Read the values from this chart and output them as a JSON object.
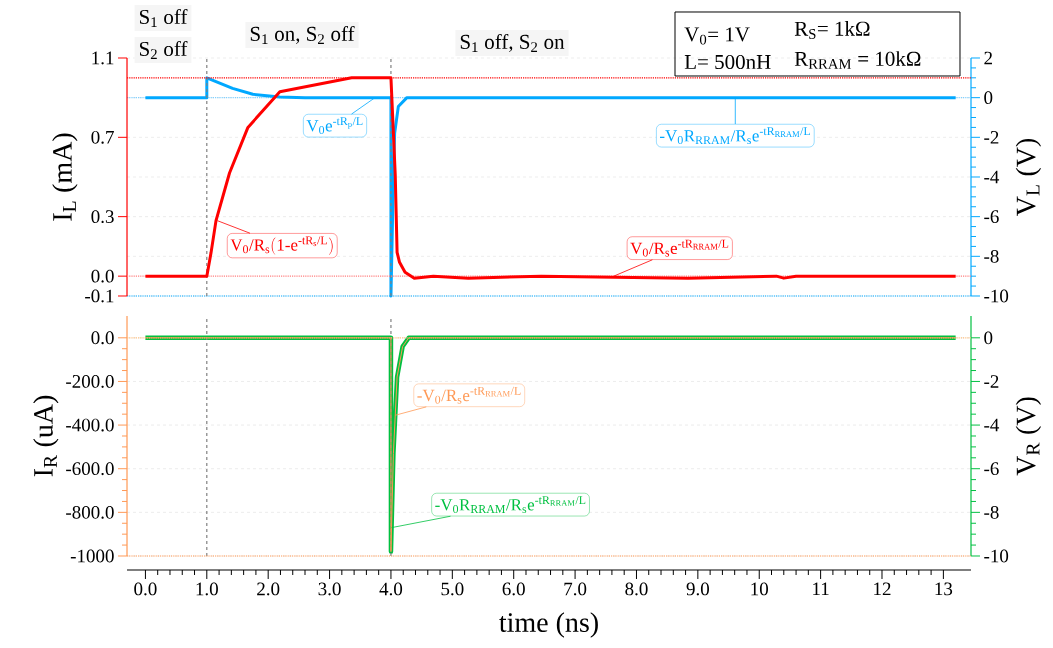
{
  "chart_data": [
    {
      "type": "line",
      "ylabel": "I$_{L}$ (mA)",
      "y2label": "V$_{L}$ (V)",
      "xlim": [
        -0.3,
        13.45
      ],
      "xticks": [
        {
          "value": 0,
          "label": null
        },
        {
          "value": 1,
          "label": null
        },
        {
          "value": 2,
          "label": null
        },
        {
          "value": 3,
          "label": null
        },
        {
          "value": 4,
          "label": null
        },
        {
          "value": 5,
          "label": null
        },
        {
          "value": 6,
          "label": null
        },
        {
          "value": 7,
          "label": null
        },
        {
          "value": 8,
          "label": null
        },
        {
          "value": 9,
          "label": null
        },
        {
          "value": 10,
          "label": null
        },
        {
          "value": 11,
          "label": null
        },
        {
          "value": 12,
          "label": null
        },
        {
          "value": 13,
          "label": null
        }
      ],
      "ylim": [
        -0.1,
        1.1
      ],
      "yticks": [
        1.1,
        0.7,
        0.3,
        {
          "value": 0,
          "label": "0.0"
        },
        -0.1
      ],
      "y2lim": [
        -10,
        2
      ],
      "y2ticks": [
        2,
        0,
        -2,
        -4,
        -6,
        -8,
        -10
      ],
      "tick_labels": "y",
      "grid": true,
      "series": [
        {
          "color": "#ff0000",
          "x": [
            0,
            1.0,
            1.07,
            1.15,
            1.37,
            1.67,
            2.19,
            3.36,
            4.0,
            4.07,
            4.1,
            4.14,
            4.23,
            4.38,
            4.69,
            5.26,
            6.45,
            8.84,
            10.28,
            10.4,
            10.6,
            13.2
          ],
          "values": [
            0,
            0,
            0.12,
            0.28,
            0.52,
            0.75,
            0.93,
            1.0,
            1.0,
            0.51,
            0.12,
            0.07,
            0.02,
            -0.01,
            0.0,
            -0.01,
            0.0,
            -0.01,
            0.0,
            -0.01,
            0.0,
            0.0
          ]
        },
        {
          "color": "#00a8ff",
          "axis": "y2",
          "x": [
            0,
            1.0,
            1.0,
            1.42,
            1.75,
            2.19,
            2.6,
            4.0,
            4.0,
            4.02,
            4.04,
            4.06,
            4.12,
            4.26,
            13.2
          ],
          "values": [
            0,
            0,
            1.0,
            0.47,
            0.17,
            0.03,
            0,
            0,
            -10,
            -7,
            -4,
            -1.8,
            -0.45,
            0,
            0
          ]
        }
      ],
      "ref_lines": [
        {
          "axis": "x",
          "value": 1.0,
          "color": "#808080",
          "line_style": "dashed"
        },
        {
          "axis": "x",
          "value": 4.0,
          "color": "#808080",
          "line_style": "dashed"
        },
        {
          "axis": "y",
          "value": 1.0,
          "color": "#ff0000",
          "line_style": "dotted"
        },
        {
          "axis": "y",
          "value": 0.0,
          "color": "#ff8080",
          "line_style": "dotted"
        },
        {
          "axis": "y2",
          "value": 0,
          "color": "#80d0ff",
          "line_style": "dotted"
        },
        {
          "axis": "y2",
          "value": -10,
          "color": "#00a8ff",
          "line_style": "dotted"
        }
      ],
      "annotations": [
        "S$_{1}$ off",
        "S$_{2}$ off",
        "S$_{1}$ on, S$_{2}$ off",
        "S$_{1}$ off, S$_{2}$ on",
        "V$_{0}$= 1V",
        "R$_{S}$= 1kΩ",
        "L= 500nH",
        "R$_{RRAM}$ = 10kΩ",
        {
          "text": "\\mathrm{V_0e^{\\textrm{-}tR_p\\textrm{/}L}}",
          "x": 3.74,
          "y": 0.9
        },
        {
          "text": "\\mathrm{\\textrm{-}V_0R_{RRAM}\\textrm{/}R_se^{\\textrm{-}tR_{RRAM}\\textrm{/}L}}",
          "x": 9.61,
          "y": 0.9
        },
        {
          "text": "\\mathrm{V_0\\textrm{/}R_s(1\\textrm{-}e^{\\textrm{-}tR_s\\textrm{/}L})}",
          "x": 1.17,
          "y": 0.28
        },
        {
          "text": "\\mathrm{V_0\\textrm{/}R_se^{\\textrm{-}tR_{RRAM}\\textrm{/}L}}",
          "x": 7.63,
          "y": 0.0
        }
      ]
    },
    {
      "type": "line",
      "xlabel": "time (ns)",
      "ylabel": "I$_{R}$ (uA)",
      "y2label": "V$_{R}$ (V)",
      "xlim": [
        -0.3,
        13.45
      ],
      "xticks": [
        {
          "value": 0,
          "label": "0.0"
        },
        {
          "value": 1,
          "label": "1.0"
        },
        {
          "value": 2,
          "label": "2.0"
        },
        {
          "value": 3,
          "label": "3.0"
        },
        {
          "value": 4,
          "label": "4.0"
        },
        {
          "value": 5,
          "label": "5.0"
        },
        {
          "value": 6,
          "label": "6.0"
        },
        {
          "value": 7,
          "label": "7.0"
        },
        {
          "value": 8,
          "label": "8.0"
        },
        {
          "value": 9,
          "label": "9.0"
        },
        10,
        11,
        12,
        13
      ],
      "ylim": [
        -1000,
        100
      ],
      "yticks": [
        {
          "value": 0,
          "label": "0.0"
        },
        {
          "value": -200,
          "label": "-200.0"
        },
        {
          "value": -400,
          "label": "-400.0"
        },
        {
          "value": -600,
          "label": "-600.0"
        },
        {
          "value": -800,
          "label": "-800.0"
        },
        -1000
      ],
      "y2lim": [
        -10,
        1
      ],
      "y2ticks": [
        0,
        -2,
        -4,
        -6,
        -8,
        -10
      ],
      "grid": true,
      "series": [
        {
          "color": "#ff9955",
          "x": [
            0,
            4.0,
            4.0,
            4.04,
            4.1,
            4.19,
            4.29,
            13.2
          ],
          "values": [
            0,
            0,
            -980,
            -530,
            -180,
            -40,
            0,
            0
          ]
        },
        {
          "color": "#00c040",
          "axis": "y2",
          "x": [
            0,
            4.0,
            4.0,
            4.04,
            4.1,
            4.19,
            4.29,
            13.2
          ],
          "values": [
            0,
            0,
            -9.8,
            -5.3,
            -1.8,
            -0.4,
            0,
            0
          ]
        }
      ],
      "ref_lines": [
        {
          "axis": "x",
          "value": 1.0,
          "color": "#808080",
          "line_style": "dashed"
        },
        {
          "axis": "x",
          "value": 4.0,
          "color": "#808080",
          "line_style": "dashed"
        },
        {
          "axis": "y",
          "value": 0,
          "color": "#ffc080",
          "line_style": "dotted"
        },
        {
          "axis": "y",
          "value": -1000,
          "color": "#ff9955",
          "line_style": "dotted"
        }
      ],
      "annotations": [
        {
          "text": "\\mathrm{\\textrm{-}V_0\\textrm{/}R_se^{\\textrm{-}tR_{RRAM}\\textrm{/}L}}",
          "x": 4.07,
          "y": -355
        },
        {
          "text": "\\mathrm{\\textrm{-}V_0R_{RRAM}\\textrm{/}R_se^{\\textrm{-}tR_{RRAM}\\textrm{/}L}}",
          "x": 4.01,
          "y": -870
        }
      ]
    }
  ]
}
